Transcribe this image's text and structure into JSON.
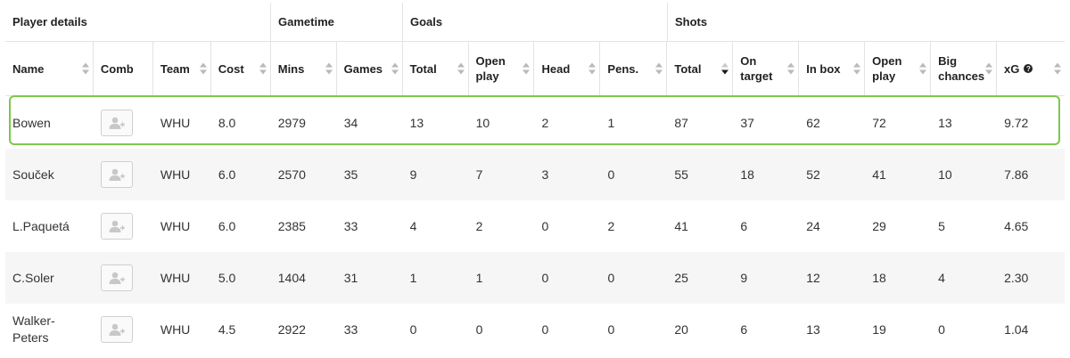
{
  "groups": {
    "player_details": "Player details",
    "gametime": "Gametime",
    "goals": "Goals",
    "shots": "Shots"
  },
  "columns": {
    "name": "Name",
    "comb": "Comb",
    "team": "Team",
    "cost": "Cost",
    "mins": "Mins",
    "games": "Games",
    "goals_total": "Total",
    "goals_open_play": "Open play",
    "head": "Head",
    "pens": "Pens.",
    "shots_total": "Total",
    "on_target": "On target",
    "in_box": "In box",
    "shots_open_play": "Open play",
    "big_chances": "Big chances",
    "xg": "xG"
  },
  "sorted_column": "shots_total",
  "highlight_color": "#7cc84a",
  "comb_icon": "add-user-icon",
  "rows": [
    {
      "name": "Bowen",
      "team": "WHU",
      "cost": "8.0",
      "mins": "2979",
      "games": "34",
      "goals_total": "13",
      "goals_open_play": "10",
      "head": "2",
      "pens": "1",
      "shots_total": "87",
      "on_target": "37",
      "in_box": "62",
      "shots_open_play": "72",
      "big_chances": "13",
      "xg": "9.72"
    },
    {
      "name": "Souček",
      "team": "WHU",
      "cost": "6.0",
      "mins": "2570",
      "games": "35",
      "goals_total": "9",
      "goals_open_play": "7",
      "head": "3",
      "pens": "0",
      "shots_total": "55",
      "on_target": "18",
      "in_box": "52",
      "shots_open_play": "41",
      "big_chances": "10",
      "xg": "7.86"
    },
    {
      "name": "L.Paquetá",
      "team": "WHU",
      "cost": "6.0",
      "mins": "2385",
      "games": "33",
      "goals_total": "4",
      "goals_open_play": "2",
      "head": "0",
      "pens": "2",
      "shots_total": "41",
      "on_target": "6",
      "in_box": "24",
      "shots_open_play": "29",
      "big_chances": "5",
      "xg": "4.65"
    },
    {
      "name": "C.Soler",
      "team": "WHU",
      "cost": "5.0",
      "mins": "1404",
      "games": "31",
      "goals_total": "1",
      "goals_open_play": "1",
      "head": "0",
      "pens": "0",
      "shots_total": "25",
      "on_target": "9",
      "in_box": "12",
      "shots_open_play": "18",
      "big_chances": "4",
      "xg": "2.30"
    },
    {
      "name": "Walker-Peters",
      "team": "WHU",
      "cost": "4.5",
      "mins": "2922",
      "games": "33",
      "goals_total": "0",
      "goals_open_play": "0",
      "head": "0",
      "pens": "0",
      "shots_total": "20",
      "on_target": "6",
      "in_box": "13",
      "shots_open_play": "19",
      "big_chances": "0",
      "xg": "1.04"
    }
  ]
}
